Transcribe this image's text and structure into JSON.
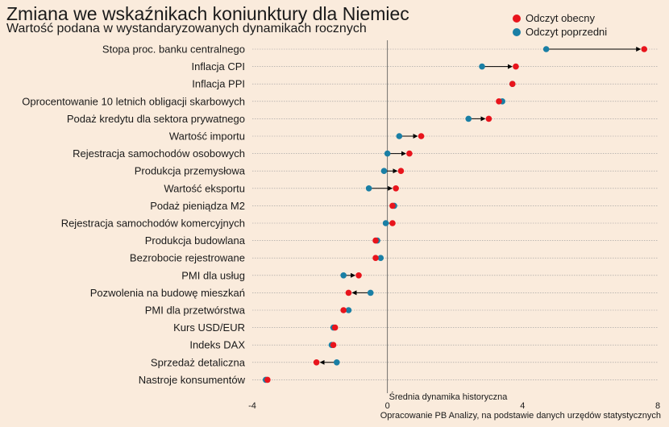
{
  "header": {
    "title": "Zmiana we wskaźnikach koniunktury dla Niemiec",
    "subtitle": "Wartość podana w wystandaryzowanych dynamikach rocznych"
  },
  "caption": "Opracowanie PB Analizy, na podstawie danych urzędów statystycznych",
  "colors": {
    "current": "#e8141c",
    "previous": "#1a7fa5",
    "background": "#faebdc"
  },
  "chart_data": {
    "type": "dumbbell",
    "title": "Zmiana we wskaźnikach koniunktury dla Niemiec",
    "subtitle": "Wartość podana w wystandaryzowanych dynamikach rocznych",
    "xlim": [
      -4,
      8
    ],
    "x_ticks": [
      -4,
      0,
      4,
      8
    ],
    "reference_line": {
      "x": 0,
      "label": "Średnia dynamika historyczna"
    },
    "legend": {
      "position": "top-right",
      "current": "Odczyt obecny",
      "previous": "Odczyt poprzedni"
    },
    "categories": [
      "Stopa proc. banku centralnego",
      "Inflacja CPI",
      "Inflacja PPI",
      "Oprocentowanie 10 letnich obligacji skarbowych",
      "Podaż kredytu dla sektora prywatnego",
      "Wartość importu",
      "Rejestracja samochodów osobowych",
      "Produkcja przemysłowa",
      "Wartość eksportu",
      "Podaż pieniądza M2",
      "Rejestracja samochodów komercyjnych",
      "Produkcja budowlana",
      "Bezrobocie rejestrowane",
      "PMI dla usług",
      "Pozwolenia na budowę mieszkań",
      "PMI dla przetwórstwa",
      "Kurs USD/EUR",
      "Indeks DAX",
      "Sprzedaż detaliczna",
      "Nastroje konsumentów"
    ],
    "series": [
      {
        "name": "Odczyt obecny",
        "values": [
          7.6,
          3.8,
          3.7,
          3.3,
          3.0,
          1.0,
          0.65,
          0.4,
          0.25,
          0.15,
          0.15,
          -0.35,
          -0.35,
          -0.85,
          -1.15,
          -1.3,
          -1.55,
          -1.6,
          -2.1,
          -3.55
        ]
      },
      {
        "name": "Odczyt poprzedni",
        "values": [
          4.7,
          2.8,
          3.7,
          3.4,
          2.4,
          0.35,
          0.0,
          -0.1,
          -0.55,
          0.2,
          -0.05,
          -0.3,
          -0.2,
          -1.3,
          -0.5,
          -1.15,
          -1.6,
          -1.65,
          -1.5,
          -3.6
        ]
      }
    ]
  }
}
